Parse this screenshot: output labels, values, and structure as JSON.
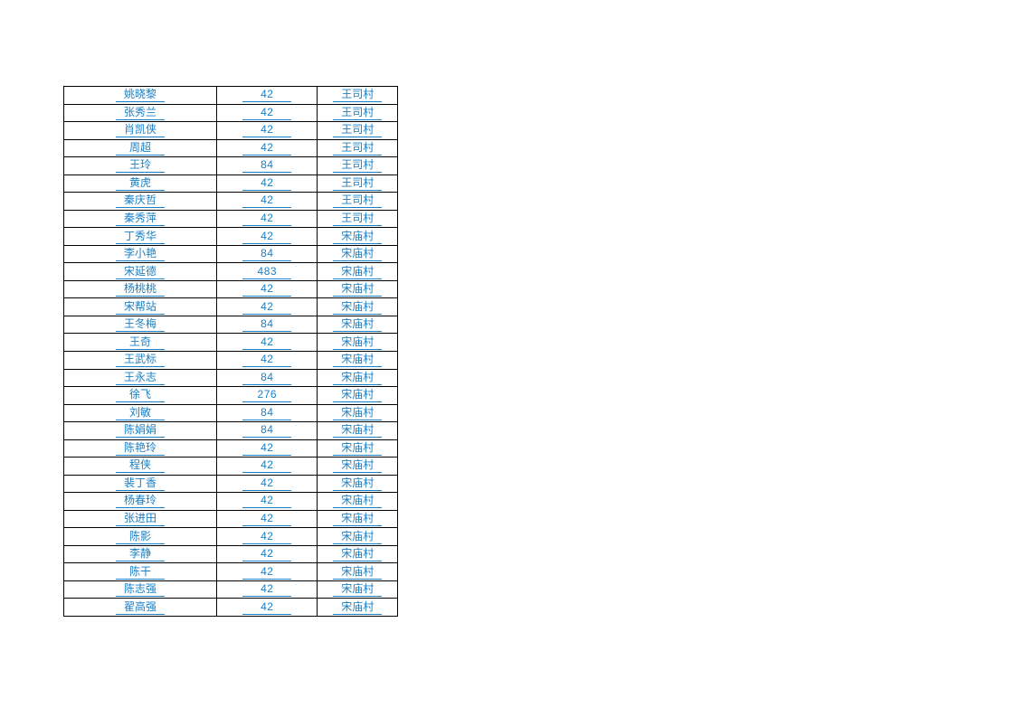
{
  "page": {
    "background": "#ffffff"
  },
  "colors": {
    "text_blue": "#1a7fc5",
    "border_black": "#000000"
  },
  "table": {
    "column_keys": [
      "name",
      "value",
      "village"
    ],
    "rows": [
      {
        "name": "姚晓黎",
        "value": "42",
        "village": "王司村"
      },
      {
        "name": "张秀兰",
        "value": "42",
        "village": "王司村"
      },
      {
        "name": "肖凯侠",
        "value": "42",
        "village": "王司村"
      },
      {
        "name": "周超",
        "value": "42",
        "village": "王司村"
      },
      {
        "name": "王玲",
        "value": "84",
        "village": "王司村"
      },
      {
        "name": "黄虎",
        "value": "42",
        "village": "王司村"
      },
      {
        "name": "秦庆哲",
        "value": "42",
        "village": "王司村"
      },
      {
        "name": "秦秀萍",
        "value": "42",
        "village": "王司村"
      },
      {
        "name": "丁秀华",
        "value": "42",
        "village": "宋庙村"
      },
      {
        "name": "李小艳",
        "value": "84",
        "village": "宋庙村"
      },
      {
        "name": "宋延德",
        "value": "483",
        "village": "宋庙村"
      },
      {
        "name": "杨桃桃",
        "value": "42",
        "village": "宋庙村"
      },
      {
        "name": "宋帮站",
        "value": "42",
        "village": "宋庙村"
      },
      {
        "name": "王冬梅",
        "value": "84",
        "village": "宋庙村"
      },
      {
        "name": "王奇",
        "value": "42",
        "village": "宋庙村"
      },
      {
        "name": "王武标",
        "value": "42",
        "village": "宋庙村"
      },
      {
        "name": "王永志",
        "value": "84",
        "village": "宋庙村"
      },
      {
        "name": "徐飞",
        "value": "276",
        "village": "宋庙村"
      },
      {
        "name": "刘敏",
        "value": "84",
        "village": "宋庙村"
      },
      {
        "name": "陈娟娟",
        "value": "84",
        "village": "宋庙村"
      },
      {
        "name": "陈艳玲",
        "value": "42",
        "village": "宋庙村"
      },
      {
        "name": "程侠",
        "value": "42",
        "village": "宋庙村"
      },
      {
        "name": "裴丁香",
        "value": "42",
        "village": "宋庙村"
      },
      {
        "name": "杨春玲",
        "value": "42",
        "village": "宋庙村"
      },
      {
        "name": "张进田",
        "value": "42",
        "village": "宋庙村"
      },
      {
        "name": "陈影",
        "value": "42",
        "village": "宋庙村"
      },
      {
        "name": "李静",
        "value": "42",
        "village": "宋庙村"
      },
      {
        "name": "陈干",
        "value": "42",
        "village": "宋庙村"
      },
      {
        "name": "陈志强",
        "value": "42",
        "village": "宋庙村"
      },
      {
        "name": "翟高强",
        "value": "42",
        "village": "宋庙村"
      }
    ]
  }
}
